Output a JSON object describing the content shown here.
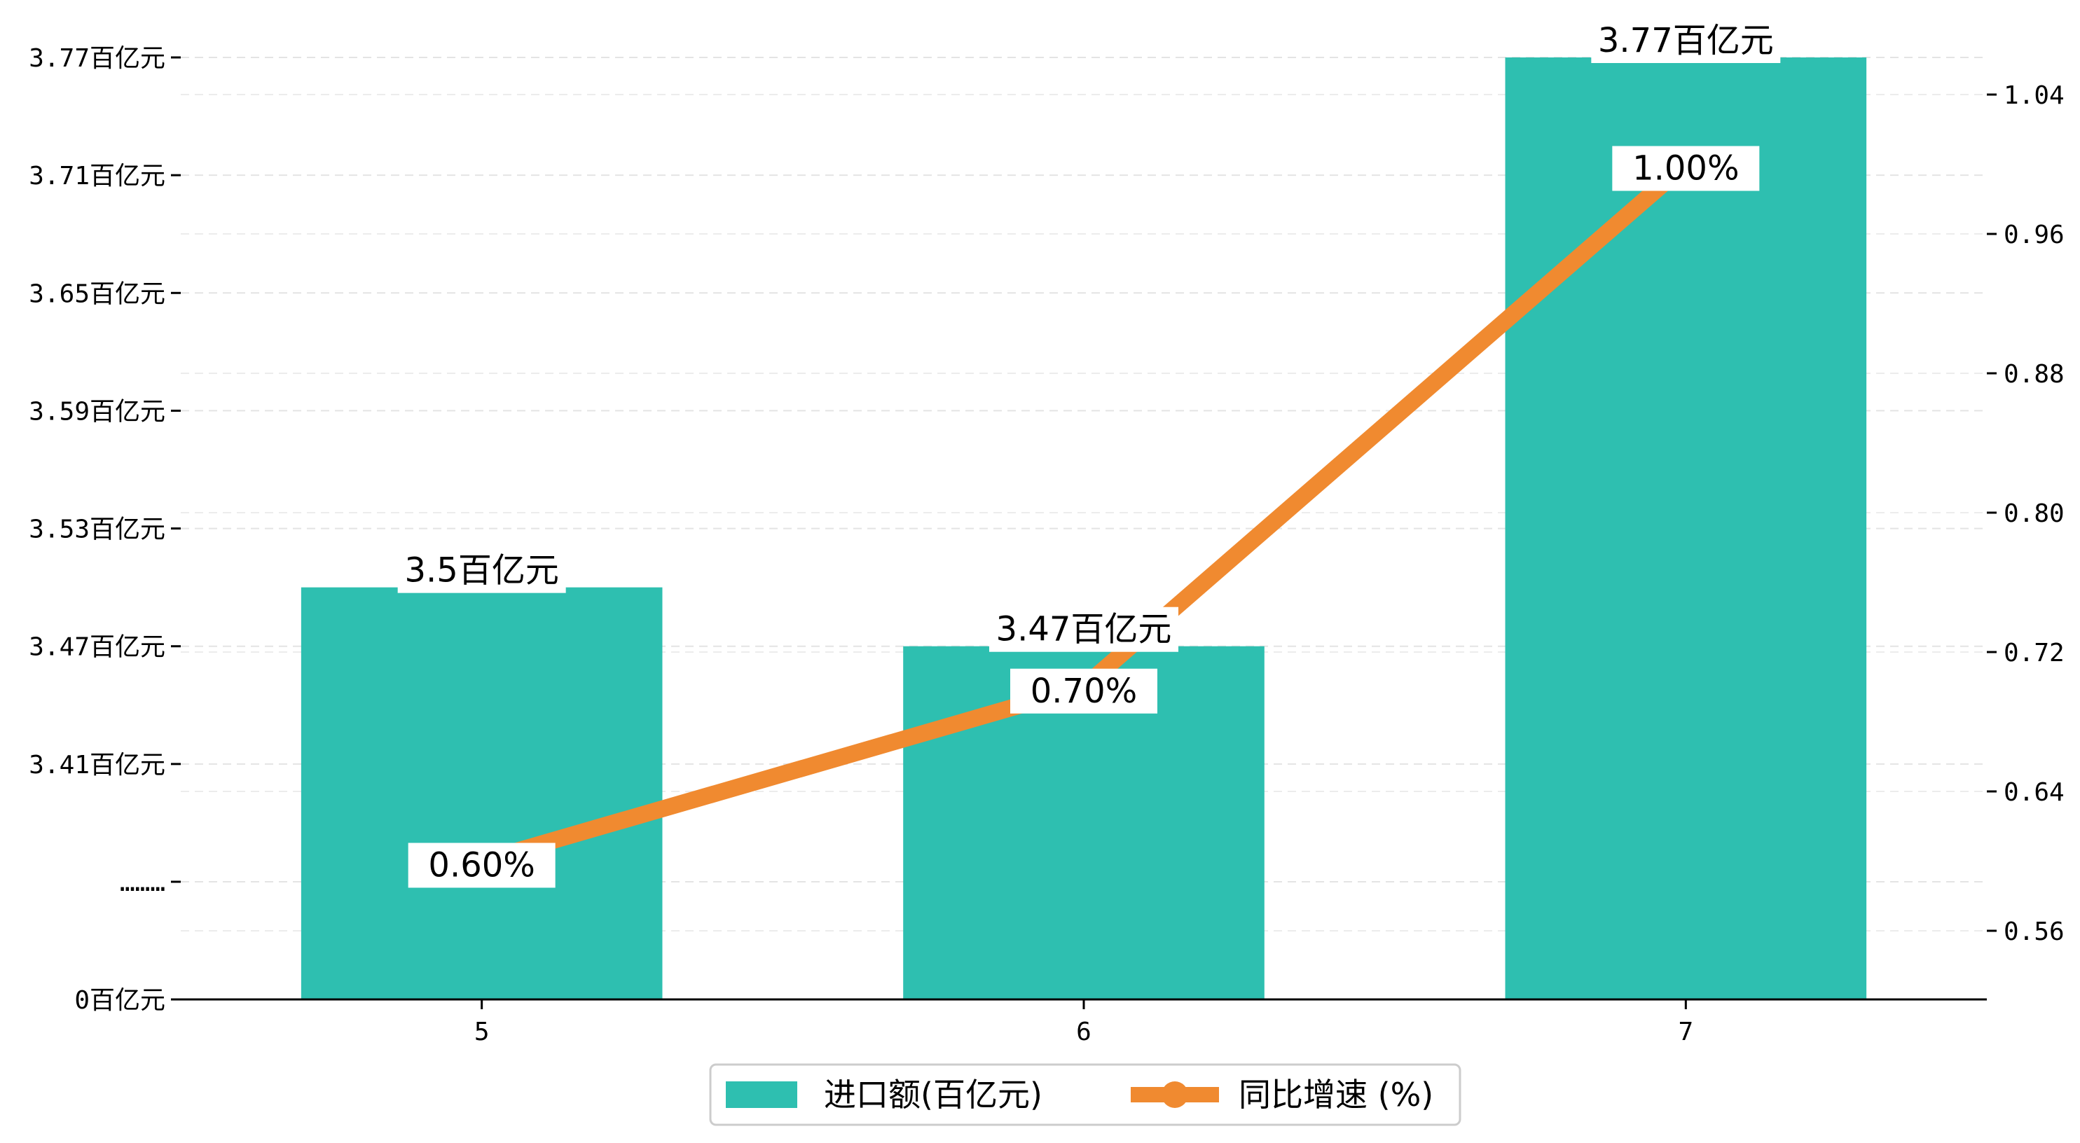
{
  "chart_data": {
    "type": "bar+line",
    "categories": [
      "5",
      "6",
      "7"
    ],
    "series": [
      {
        "name": "进口额(百亿元)",
        "type": "bar",
        "axis": "left",
        "values": [
          3.5,
          3.47,
          3.77
        ],
        "labels": [
          "3.5百亿元",
          "3.47百亿元",
          "3.77百亿元"
        ],
        "color": "#2ebfb0"
      },
      {
        "name": "同比增速 (%)",
        "type": "line",
        "axis": "right",
        "values": [
          0.6,
          0.7,
          1.0
        ],
        "labels": [
          "0.60%",
          "0.70%",
          "1.00%"
        ],
        "color": "#f08a30"
      }
    ],
    "left_axis": {
      "ticks": [
        0,
        3.35,
        3.41,
        3.47,
        3.53,
        3.59,
        3.65,
        3.71,
        3.77
      ],
      "tick_labels": [
        "0百亿元",
        "………",
        "3.41百亿元",
        "3.47百亿元",
        "3.53百亿元",
        "3.59百亿元",
        "3.65百亿元",
        "3.71百亿元",
        "3.77百亿元"
      ],
      "broken": true,
      "break_range": [
        0,
        3.35
      ]
    },
    "right_axis": {
      "ticks": [
        0.56,
        0.64,
        0.72,
        0.8,
        0.88,
        0.96,
        1.04
      ],
      "tick_labels": [
        "0.56",
        "0.64",
        "0.72",
        "0.80",
        "0.88",
        "0.96",
        "1.04"
      ],
      "range": [
        0.5206,
        1.0782
      ]
    },
    "grid": true,
    "legend_position": "bottom-center",
    "title": "",
    "xlabel": "",
    "ylabel": ""
  }
}
